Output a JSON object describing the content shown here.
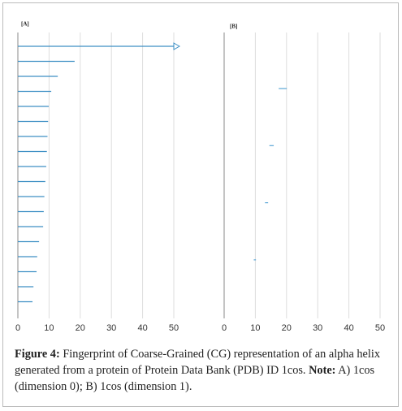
{
  "chart_data": [
    {
      "type": "barcode",
      "label": "[A]",
      "color": "#3d8fc4",
      "start": [
        0,
        0,
        0,
        0,
        0,
        0,
        0,
        0,
        0,
        0,
        0,
        0,
        0,
        0,
        0,
        0,
        0,
        0
      ],
      "end": [
        50,
        18.2,
        12.8,
        10.7,
        9.9,
        9.7,
        9.5,
        9.3,
        9.1,
        8.8,
        8.5,
        8.3,
        8.1,
        6.8,
        6.2,
        6.0,
        5.0,
        4.7
      ],
      "xlim": [
        0,
        50
      ],
      "xticks": [
        0,
        10,
        20,
        30,
        40,
        50
      ],
      "grid": true
    },
    {
      "type": "barcode",
      "label": "[B]",
      "color": "#5aa6d6",
      "start": [
        17.5,
        14.5,
        13.1,
        9.5
      ],
      "end": [
        20.1,
        15.9,
        14.1,
        10.2
      ],
      "xlim": [
        0,
        50
      ],
      "xticks": [
        0,
        10,
        20,
        30,
        40,
        50
      ],
      "grid": true
    }
  ],
  "caption": {
    "label": "Figure 4:",
    "text": "Fingerprint of Coarse-Grained (CG) representation of an alpha helix generated from a protein of Protein Data Bank (PDB) ID 1cos.",
    "note_label": "Note:",
    "note_text": "A) 1cos (dimension 0); B) 1cos (dimension 1)."
  }
}
